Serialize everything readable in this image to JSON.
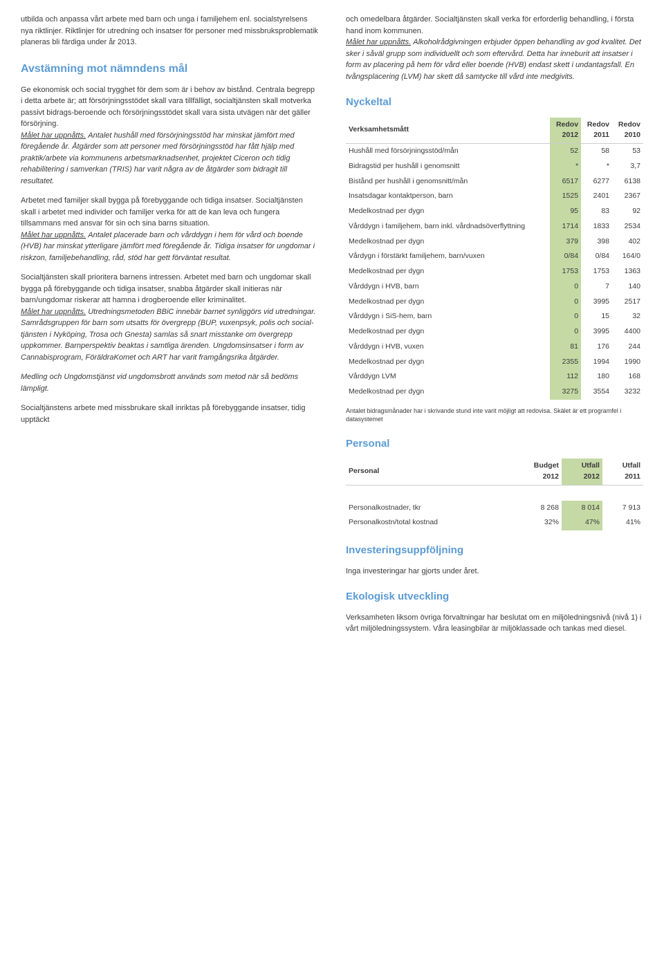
{
  "colors": {
    "heading": "#5b9bd5",
    "highlight": "#c5d9a5",
    "text": "#3a3a3a",
    "border": "#cccccc"
  },
  "left": {
    "p1": "utbilda och anpassa vårt arbete med barn och unga i familjehem enl. socialstyrelsens nya riktlinjer. Riktlinjer för utredning och insatser för personer med missbruksproblematik planeras bli färdiga under år 2013.",
    "h1": "Avstämning mot nämndens mål",
    "p2a": "Ge ekonomisk och social trygghet för dem som är i behov av bistånd. Centrala begrepp i detta arbete är; att försörjningsstödet skall vara tillfälligt, socialtjänsten skall motverka passivt bidrags-beroende och försörjningsstödet skall vara sista utvägen när det gäller försörjning.",
    "p2u": "Målet har uppnåtts.",
    "p2b": " Antalet hushåll med försörjningsstöd har minskat jämfört med föregående år. Åtgärder som att personer med försörjningsstöd har fått hjälp med praktik/arbete via kommunens arbetsmarknadsenhet, projektet Ciceron och tidig rehabilitering i samverkan (TRIS) har varit några av de åtgärder som bidragit till resultatet.",
    "p3a": "Arbetet med familjer skall bygga på förebyggande och tidiga insatser. Socialtjänsten skall i arbetet med individer och familjer verka för att de kan leva och fungera tillsammans med ansvar för sin och sina barns situation.",
    "p3u": "Målet har uppnåtts.",
    "p3b": " Antalet placerade barn och vårddygn i hem för vård och boende (HVB) har minskat ytterligare jämfört med föregående år. Tidiga insatser för ungdomar i riskzon, familjebehandling, råd, stöd har gett förväntat resultat.",
    "p4a": "Socialtjänsten skall prioritera barnens intressen. Arbetet med barn och ungdomar skall bygga på förebyggande och tidiga insatser, snabba åtgärder skall initieras när barn/ungdomar riskerar att hamna i drogberoende eller kriminalitet.",
    "p4u": "Målet har uppnåtts.",
    "p4b": " Utredningsmetoden BBiC innebär barnet synliggörs vid utredningar. Samrådsgruppen för barn som utsatts för övergrepp (BUP, vuxenpsyk, polis och social-tjänsten i Nyköping, Trosa och Gnesta) samlas så snart misstanke om övergrepp uppkommer. Barnperspektiv beaktas i samtliga ärenden. Ungdomsinsatser i form av Cannabisprogram, FöräldraKomet och ART har varit framgångsrika åtgärder.",
    "p4c": "Medling och Ungdomstjänst vid ungdomsbrott används som metod när så bedöms lämpligt.",
    "p5": "Socialtjänstens arbete med missbrukare skall inriktas på förebyggande insatser, tidig upptäckt"
  },
  "right": {
    "p1a": "och omedelbara åtgärder. Socialtjänsten skall verka för erforderlig behandling, i första hand inom kommunen.",
    "p1u": "Målet har uppnåtts.",
    "p1b": " Alkoholrådgivningen erbjuder öppen behandling av god kvalitet. Det sker i såväl grupp som individuellt och som eftervård. Detta har inneburit att insatser i form av placering på hem för vård eller boende (HVB) endast skett i undantagsfall. En tvångsplacering (LVM) har skett då samtycke till vård inte medgivits.",
    "h_nyckel": "Nyckeltal",
    "nyckel_headers": [
      "Verksamhetsmått",
      "Redov 2012",
      "Redov 2011",
      "Redov 2010"
    ],
    "nyckel_rows": [
      [
        "Hushåll med försörjningsstöd/mån",
        "52",
        "58",
        "53"
      ],
      [
        "Bidragstid per hushåll i genomsnitt",
        "*",
        "*",
        "3,7"
      ],
      [
        "Bistånd per hushåll i genomsnitt/mån",
        "6517",
        "6277",
        "6138"
      ],
      [
        "Insatsdagar kontaktperson, barn",
        "1525",
        "2401",
        "2367"
      ],
      [
        "Medelkostnad per dygn",
        "95",
        "83",
        "92"
      ],
      [
        "Vårddygn i familjehem, barn inkl. vårdnadsöverflyttning",
        "1714",
        "1833",
        "2534"
      ],
      [
        "Medelkostnad per dygn",
        "379",
        "398",
        "402"
      ],
      [
        "Vårdygn i förstärkt familjehem, barn/vuxen",
        "0/84",
        "0/84",
        "164/0"
      ],
      [
        "Medelkostnad per dygn",
        "1753",
        "1753",
        "1363"
      ],
      [
        "Vårddygn i HVB, barn",
        "0",
        "7",
        "140"
      ],
      [
        "Medelkostnad per dygn",
        "0",
        "3995",
        "2517"
      ],
      [
        "Vårddygn i SiS-hem, barn",
        "0",
        "15",
        "32"
      ],
      [
        "Medelkostnad per dygn",
        "0",
        "3995",
        "4400"
      ],
      [
        "Vårddygn i HVB, vuxen",
        "81",
        "176",
        "244"
      ],
      [
        "Medelkostnad per dygn",
        "2355",
        "1994",
        "1990"
      ],
      [
        "Vårddygn LVM",
        "112",
        "180",
        "168"
      ],
      [
        "Medelkostnad per dygn",
        "3275",
        "3554",
        "3232"
      ]
    ],
    "footnote": "Antalet bidragsmånader har i skrivande stund inte varit möjligt att redovisa. Skälet är ett programfel i datasystemet",
    "h_personal": "Personal",
    "personal_headers": [
      "Personal",
      "Budget 2012",
      "Utfall 2012",
      "Utfall 2011"
    ],
    "personal_rows": [
      [
        "Personalkostnader, tkr",
        "8 268",
        "8 014",
        "7 913"
      ],
      [
        "Personalkostn/total kostnad",
        "32%",
        "47%",
        "41%"
      ]
    ],
    "h_invest": "Investeringsuppföljning",
    "p_invest": "Inga investeringar har gjorts under året.",
    "h_eko": "Ekologisk utveckling",
    "p_eko": "Verksamheten liksom övriga förvaltningar har beslutat om en miljöledningsnivå (nivå 1) i vårt miljöledningssystem. Våra leasingbilar är miljöklassade och tankas med diesel."
  }
}
